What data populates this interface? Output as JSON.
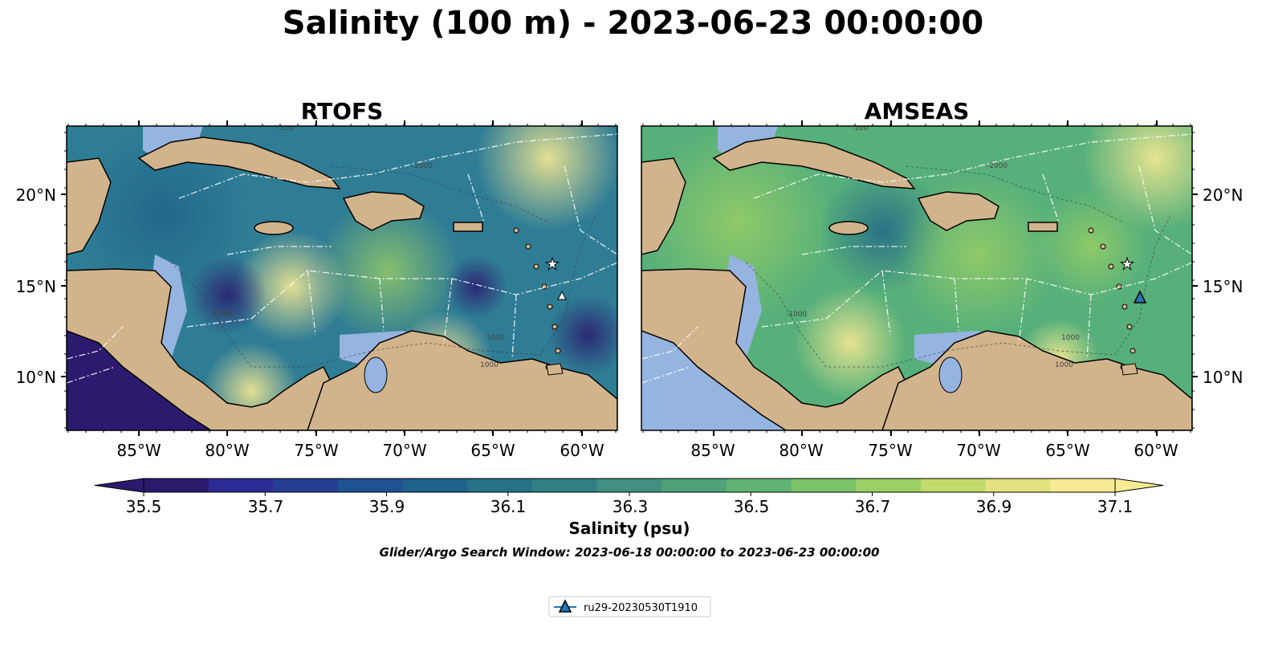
{
  "title": "Salinity (100 m) - 2023-06-23 00:00:00",
  "panels": [
    {
      "title": "RTOFS",
      "tint": "#2f7d95",
      "tint2": "#eff29a",
      "low": "#2b1a6e"
    },
    {
      "title": "AMSEAS",
      "tint": "#57b07a",
      "tint2": "#f0ec96",
      "low": "#96b4e0"
    }
  ],
  "lat_ticks": [
    "20°N",
    "15°N",
    "10°N"
  ],
  "lon_ticks": [
    "85°W",
    "80°W",
    "75°W",
    "70°W",
    "65°W",
    "60°W"
  ],
  "contour_labels": [
    "-100",
    "-1000",
    "1000",
    "-2000",
    "1000"
  ],
  "colorbar": {
    "label": "Salinity (psu)",
    "ticks": [
      "35.5",
      "35.7",
      "35.9",
      "36.1",
      "36.3",
      "36.5",
      "36.7",
      "36.9",
      "37.1"
    ],
    "colors": [
      "#2b1a6e",
      "#2c2b95",
      "#243e96",
      "#1f5290",
      "#1d638a",
      "#267286",
      "#2f8083",
      "#3f9080",
      "#50a27a",
      "#61b374",
      "#7cc46a",
      "#9dd064",
      "#c2da6a",
      "#e2e27e",
      "#f7ea92"
    ],
    "min_color": "#2b1a6e",
    "max_color": "#f7ea92"
  },
  "search_window": "Glider/Argo Search Window: 2023-06-18 00:00:00 to 2023-06-23 00:00:00",
  "legend": {
    "label": "ru29-20230530T1910",
    "marker_color": "#1f77b4"
  },
  "land_color": "#d2b48c",
  "shelf_color": "#96b4e0"
}
